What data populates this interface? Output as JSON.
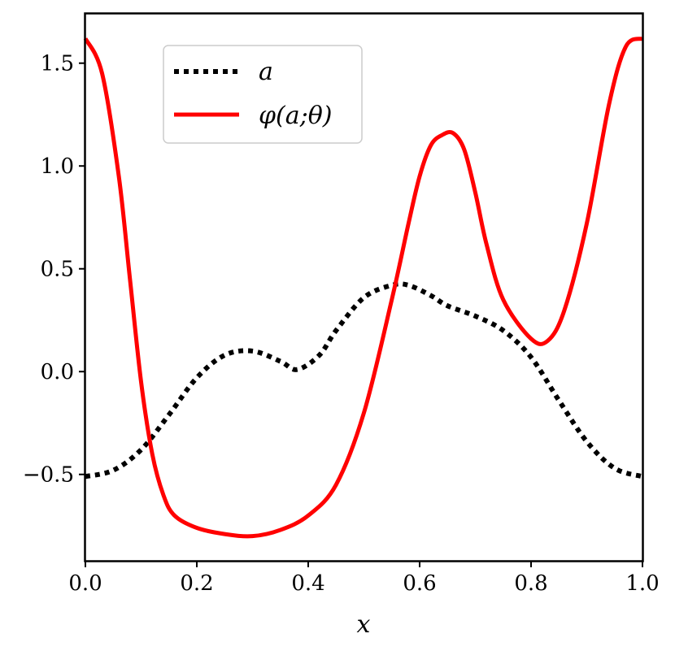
{
  "chart_data": {
    "type": "line",
    "title": "",
    "xlabel": "x",
    "ylabel": "",
    "xlim": [
      0.0,
      1.0
    ],
    "ylim": [
      -0.92,
      1.74
    ],
    "x_ticks": [
      0.0,
      0.2,
      0.4,
      0.6,
      0.8,
      1.0
    ],
    "x_tick_labels": [
      "0.0",
      "0.2",
      "0.4",
      "0.6",
      "0.8",
      "1.0"
    ],
    "y_ticks": [
      -0.5,
      0.0,
      0.5,
      1.0,
      1.5
    ],
    "y_tick_labels": [
      "−0.5",
      "0.0",
      "0.5",
      "1.0",
      "1.5"
    ],
    "grid": false,
    "legend_position": "top-left",
    "series": [
      {
        "name": "a",
        "style": "dotted",
        "color": "#000000",
        "x": [
          0.0,
          0.05,
          0.1,
          0.15,
          0.2,
          0.25,
          0.3,
          0.35,
          0.38,
          0.42,
          0.45,
          0.5,
          0.55,
          0.58,
          0.62,
          0.65,
          0.7,
          0.75,
          0.8,
          0.85,
          0.9,
          0.95,
          1.0
        ],
        "y": [
          -0.51,
          -0.48,
          -0.38,
          -0.21,
          -0.03,
          0.08,
          0.1,
          0.05,
          0.01,
          0.08,
          0.2,
          0.36,
          0.42,
          0.42,
          0.37,
          0.32,
          0.27,
          0.2,
          0.07,
          -0.14,
          -0.34,
          -0.47,
          -0.51
        ]
      },
      {
        "name": "φ(a;θ)",
        "style": "solid",
        "color": "#ff0000",
        "x": [
          0.0,
          0.03,
          0.06,
          0.08,
          0.1,
          0.12,
          0.14,
          0.16,
          0.2,
          0.25,
          0.3,
          0.35,
          0.4,
          0.45,
          0.5,
          0.55,
          0.58,
          0.6,
          0.62,
          0.64,
          0.66,
          0.68,
          0.7,
          0.72,
          0.75,
          0.8,
          0.83,
          0.86,
          0.9,
          0.94,
          0.97,
          1.0
        ],
        "y": [
          1.62,
          1.45,
          0.95,
          0.45,
          -0.05,
          -0.4,
          -0.6,
          -0.7,
          -0.76,
          -0.79,
          -0.8,
          -0.77,
          -0.7,
          -0.55,
          -0.2,
          0.35,
          0.72,
          0.95,
          1.1,
          1.15,
          1.16,
          1.08,
          0.87,
          0.62,
          0.35,
          0.16,
          0.15,
          0.3,
          0.72,
          1.3,
          1.58,
          1.62
        ]
      }
    ]
  },
  "legend": [
    {
      "label": "a",
      "color": "#000000",
      "style": "dotted"
    },
    {
      "label": "φ(a;θ)",
      "color": "#ff0000",
      "style": "solid"
    }
  ]
}
